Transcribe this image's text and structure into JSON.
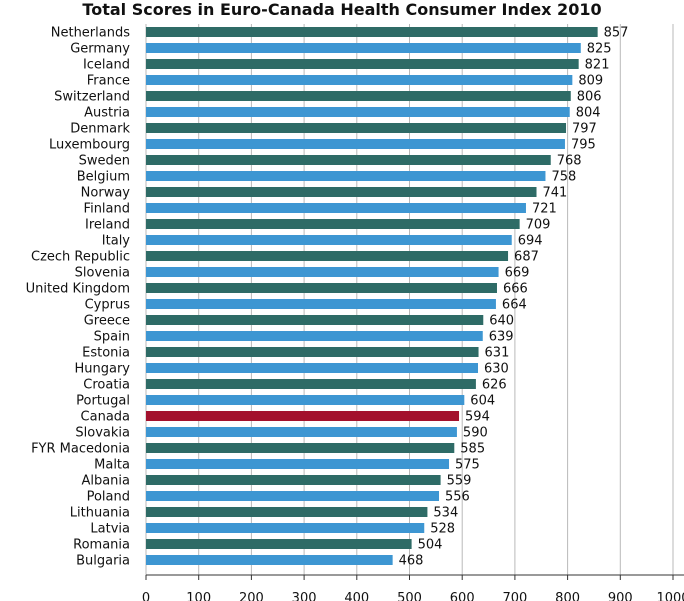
{
  "chart_data": {
    "type": "bar",
    "orientation": "horizontal",
    "title": "Total Scores in Euro-Canada Health Consumer Index 2010",
    "xlabel": "",
    "ylabel": "",
    "xlim": [
      0,
      1000
    ],
    "xticks": [
      "0",
      "100",
      "200",
      "300",
      "400",
      "500",
      "600",
      "700",
      "800",
      "900",
      "1000"
    ],
    "grid": "vertical",
    "colors": {
      "dark": "#2e6b66",
      "light": "#3d96d2",
      "highlight": "#a3112d",
      "grid": "#b9b9b9",
      "axis": "#333333"
    },
    "highlight": "Canada",
    "categories": [
      "Netherlands",
      "Germany",
      "Iceland",
      "France",
      "Switzerland",
      "Austria",
      "Denmark",
      "Luxembourg",
      "Sweden",
      "Belgium",
      "Norway",
      "Finland",
      "Ireland",
      "Italy",
      "Czech Republic",
      "Slovenia",
      "United Kingdom",
      "Cyprus",
      "Greece",
      "Spain",
      "Estonia",
      "Hungary",
      "Croatia",
      "Portugal",
      "Canada",
      "Slovakia",
      "FYR Macedonia",
      "Malta",
      "Albania",
      "Poland",
      "Lithuania",
      "Latvia",
      "Romania",
      "Bulgaria"
    ],
    "values": [
      857,
      825,
      821,
      809,
      806,
      804,
      797,
      795,
      768,
      758,
      741,
      721,
      709,
      694,
      687,
      669,
      666,
      664,
      640,
      639,
      631,
      630,
      626,
      604,
      594,
      590,
      585,
      575,
      559,
      556,
      534,
      528,
      504,
      468
    ]
  }
}
